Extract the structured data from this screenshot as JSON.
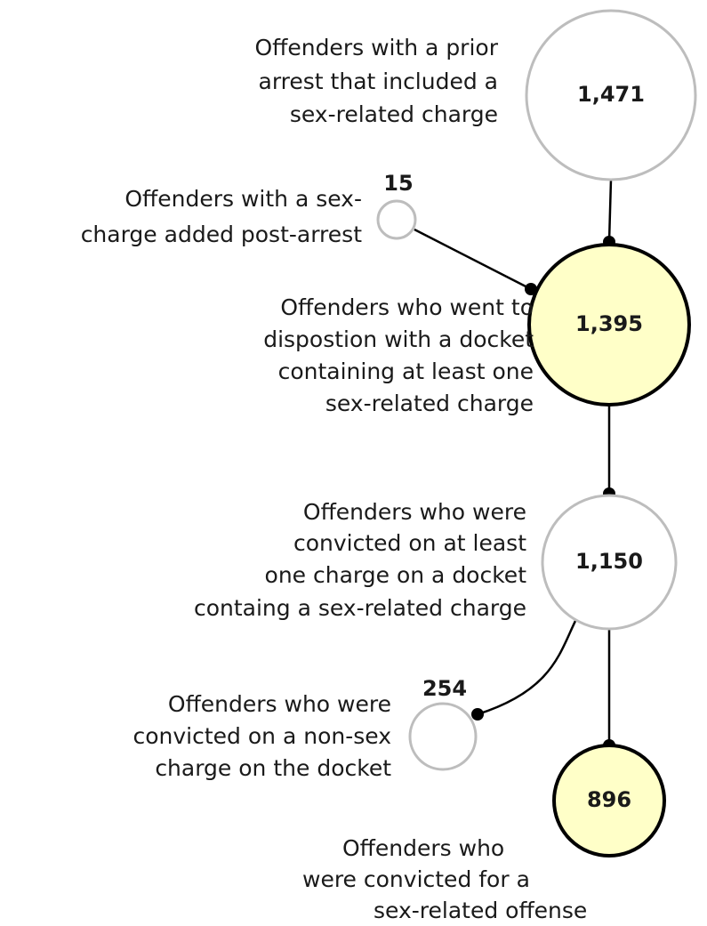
{
  "nodes": [
    {
      "value": "1,471",
      "label": [
        "Offenders with a prior",
        "arrest that included a",
        "sex-related charge"
      ]
    },
    {
      "value": "15",
      "label": [
        "Offenders with a sex-",
        "charge added post-arrest"
      ]
    },
    {
      "value": "1,395",
      "label": [
        "Offenders who went to",
        "dispostion with a docket",
        "containing at least one",
        "sex-related charge"
      ]
    },
    {
      "value": "1,150",
      "label": [
        "Offenders who were",
        "convicted on at least",
        "one charge on a docket",
        "containg a sex-related charge"
      ]
    },
    {
      "value": "254",
      "label": [
        "Offenders who were",
        "convicted on a non-sex",
        "charge on the docket"
      ]
    },
    {
      "value": "896",
      "label": [
        "Offenders who",
        "were convicted  for a",
        "sex-related offense"
      ]
    }
  ]
}
